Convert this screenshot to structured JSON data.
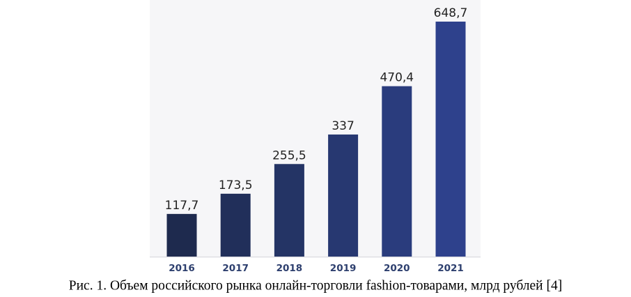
{
  "chart_data": {
    "type": "bar",
    "caption": "Рис. 1. Объем российского рынка онлайн-торговли fashion-товарами, млрд рублей [4]",
    "categories": [
      "2016",
      "2017",
      "2018",
      "2019",
      "2020",
      "2021"
    ],
    "values": [
      117.7,
      173.5,
      255.5,
      337,
      470.4,
      648.7
    ],
    "value_labels": [
      "117,7",
      "173,5",
      "255,5",
      "337",
      "470,4",
      "648,7"
    ],
    "colors": [
      "#1e2a4e",
      "#212f5a",
      "#243465",
      "#273871",
      "#2a3c7d",
      "#2e418c"
    ]
  }
}
